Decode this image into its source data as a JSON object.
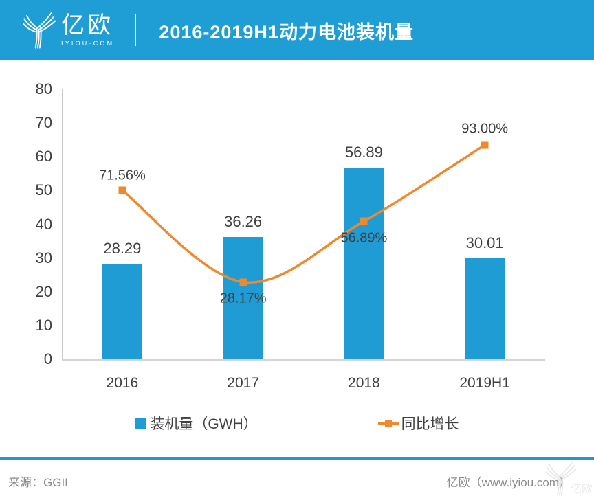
{
  "header": {
    "logo_name": "亿欧",
    "logo_domain": "IYIOU·COM",
    "title": "2016-2019H1动力电池装机量"
  },
  "chart_data": {
    "type": "bar+line",
    "categories": [
      "2016",
      "2017",
      "2018",
      "2019H1"
    ],
    "series": [
      {
        "name": "装机量（GWH）",
        "type": "bar",
        "color": "#1F9CD4",
        "values": [
          28.29,
          36.26,
          56.89,
          30.01
        ],
        "labels": [
          "28.29",
          "36.26",
          "56.89",
          "30.01"
        ]
      },
      {
        "name": "同比增长",
        "type": "line",
        "color": "#F0882D",
        "values": [
          71.56,
          28.17,
          56.89,
          93.0
        ],
        "labels": [
          "71.56%",
          "28.17%",
          "56.89%",
          "93.00%"
        ]
      }
    ],
    "title": "2016-2019H1动力电池装机量",
    "xlabel": "",
    "ylabel": "",
    "ylim": [
      0,
      80
    ],
    "yticks": [
      0,
      10,
      20,
      30,
      40,
      50,
      60,
      70,
      80
    ],
    "grid": false,
    "legend_position": "bottom"
  },
  "footer": {
    "source": "来源：GGII",
    "credit": "亿欧（www.iyiou.com）",
    "watermark": "亿欧"
  },
  "colors": {
    "brand_blue": "#1F9ED6",
    "bar_blue": "#1F9CD4",
    "line_orange": "#F0882D",
    "label_dark": "#404040",
    "footer_gray": "#8C8C8C"
  }
}
